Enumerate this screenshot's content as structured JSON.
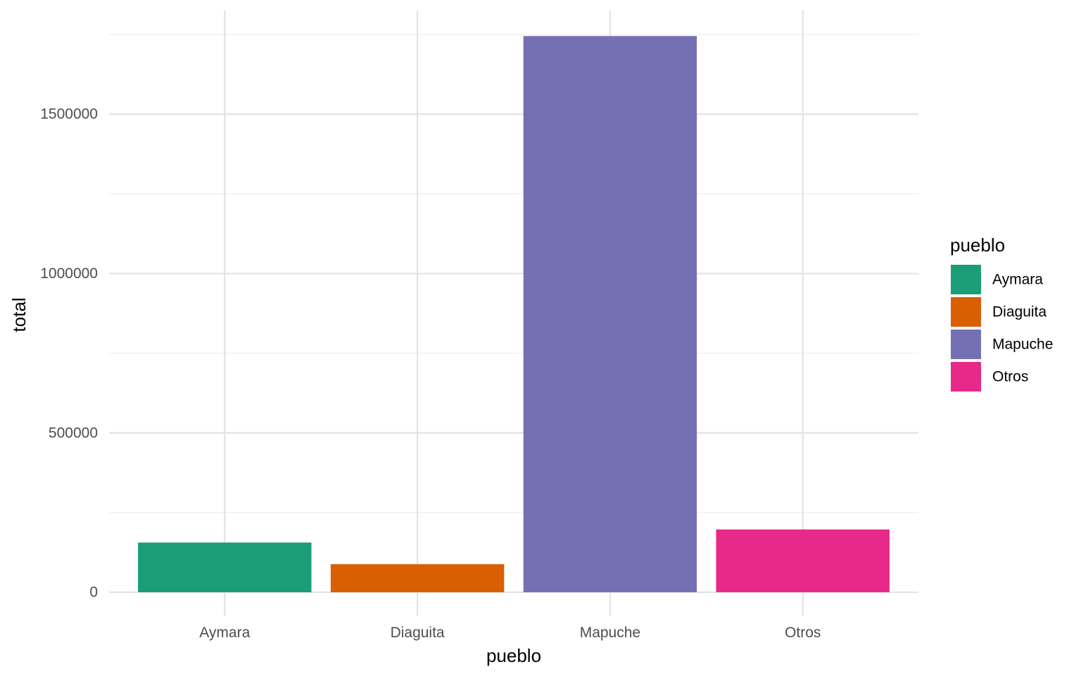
{
  "chart_data": {
    "type": "bar",
    "categories": [
      "Aymara",
      "Diaguita",
      "Mapuche",
      "Otros"
    ],
    "values": [
      156000,
      88000,
      1745000,
      197000
    ],
    "colors": [
      "#1b9e77",
      "#d95f02",
      "#7570b3",
      "#e7298a"
    ],
    "xlabel": "pueblo",
    "ylabel": "total",
    "ylim": [
      -75000,
      1825000
    ],
    "yticks": [
      0,
      500000,
      1000000,
      1500000
    ],
    "ytick_labels": [
      "0",
      "500000",
      "1000000",
      "1500000"
    ],
    "grid": true,
    "legend": {
      "title": "pueblo",
      "placement": "right",
      "entries": [
        "Aymara",
        "Diaguita",
        "Mapuche",
        "Otros"
      ]
    }
  }
}
